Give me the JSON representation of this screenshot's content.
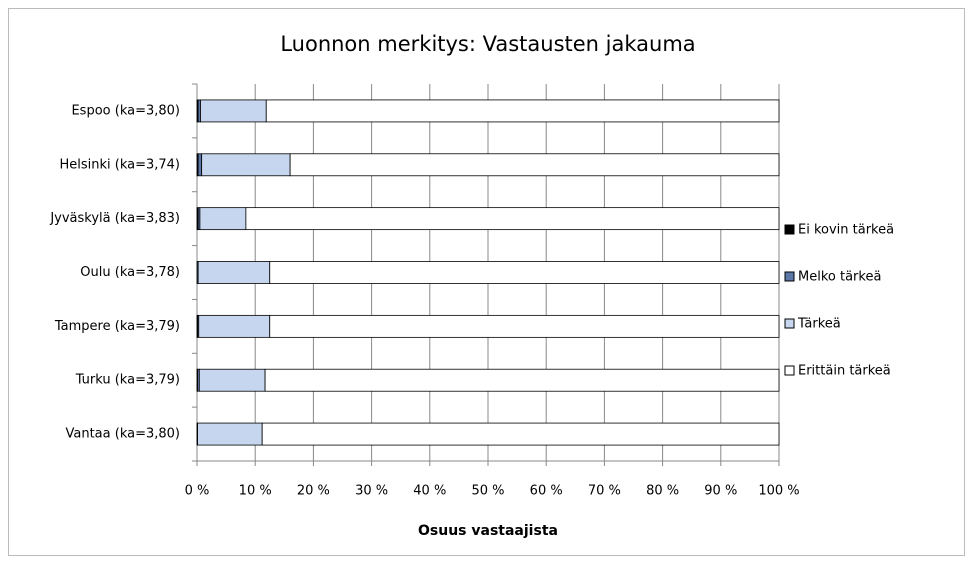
{
  "chart_data": {
    "type": "stacked_barh",
    "title": "Luonnon merkitys: Vastausten jakauma",
    "x_label": "Osuus vastaajista",
    "categories": [
      "Espoo (ka=3,80)",
      "Helsinki (ka=3,74)",
      "Jyväskylä (ka=3,83)",
      "Oulu (ka=3,78)",
      "Tampere (ka=3,79)",
      "Turku (ka=3,79)",
      "Vantaa (ka=3,80)"
    ],
    "series": [
      {
        "name": "Ei kovin tärkeä",
        "color": "#000000",
        "values": [
          0.2,
          0.2,
          0.2,
          0,
          0.1,
          0.1,
          0
        ]
      },
      {
        "name": "Melko tärkeä",
        "color": "#5b78a8",
        "values": [
          0.4,
          0.6,
          0.3,
          0.2,
          0.2,
          0.3,
          0.1
        ]
      },
      {
        "name": "Tärkeä",
        "color": "#c6d6ee",
        "values": [
          11.3,
          15.2,
          7.9,
          12.3,
          12.2,
          11.3,
          11.1
        ]
      },
      {
        "name": "Erittäin tärkeä",
        "color": "#ffffff",
        "values": [
          88.1,
          84.0,
          91.6,
          87.5,
          87.5,
          88.3,
          88.8
        ]
      }
    ],
    "xlim": [
      0,
      100
    ],
    "xticks": [
      {
        "value": 0,
        "label": "0 %"
      },
      {
        "value": 10,
        "label": "10 %"
      },
      {
        "value": 20,
        "label": "20 %"
      },
      {
        "value": 30,
        "label": "30 %"
      },
      {
        "value": 40,
        "label": "40 %"
      },
      {
        "value": 50,
        "label": "50 %"
      },
      {
        "value": 60,
        "label": "60 %"
      },
      {
        "value": 70,
        "label": "70 %"
      },
      {
        "value": 80,
        "label": "80 %"
      },
      {
        "value": 90,
        "label": "90 %"
      },
      {
        "value": 100,
        "label": "100 %"
      }
    ],
    "grid": true,
    "legend": "right"
  }
}
